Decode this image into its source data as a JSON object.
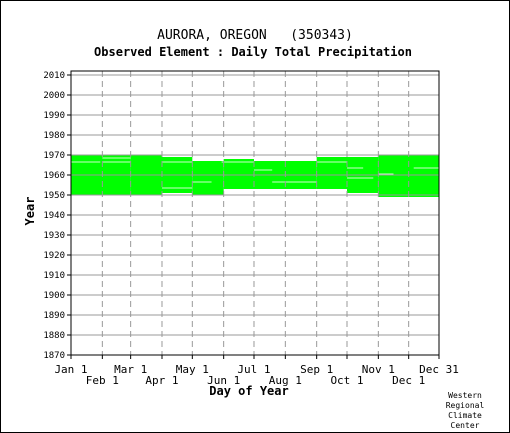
{
  "chart_data": {
    "type": "heatmap",
    "title": "AURORA, OREGON   (350343)",
    "subtitle": "Observed Element : Daily Total Precipitation",
    "xlabel": "Day of Year",
    "ylabel": "Year",
    "xlim": [
      1,
      365
    ],
    "ylim": [
      1870,
      2012
    ],
    "grid": true,
    "color": "#00ff00",
    "x_ticks_top_row": [
      {
        "label": "Jan 1",
        "day": 1
      },
      {
        "label": "Mar 1",
        "day": 60
      },
      {
        "label": "May 1",
        "day": 121
      },
      {
        "label": "Jul 1",
        "day": 182
      },
      {
        "label": "Sep 1",
        "day": 244
      },
      {
        "label": "Nov 1",
        "day": 305
      },
      {
        "label": "Dec 31",
        "day": 365
      }
    ],
    "x_ticks_bottom_row": [
      {
        "label": "Feb 1",
        "day": 32
      },
      {
        "label": "Apr 1",
        "day": 91
      },
      {
        "label": "Jun 1",
        "day": 152
      },
      {
        "label": "Aug 1",
        "day": 213
      },
      {
        "label": "Oct 1",
        "day": 274
      },
      {
        "label": "Dec 1",
        "day": 335
      }
    ],
    "y_ticks": [
      1870,
      1880,
      1890,
      1900,
      1910,
      1920,
      1930,
      1940,
      1950,
      1960,
      1970,
      1980,
      1990,
      2000,
      2010
    ],
    "coverage": [
      {
        "day_start": 1,
        "day_end": 60,
        "year_start": 1950,
        "year_end": 1969
      },
      {
        "day_start": 60,
        "day_end": 91,
        "year_start": 1950,
        "year_end": 1969
      },
      {
        "day_start": 91,
        "day_end": 121,
        "year_start": 1951,
        "year_end": 1968
      },
      {
        "day_start": 121,
        "day_end": 152,
        "year_start": 1950,
        "year_end": 1966
      },
      {
        "day_start": 152,
        "day_end": 182,
        "year_start": 1953,
        "year_end": 1967
      },
      {
        "day_start": 182,
        "day_end": 244,
        "year_start": 1953,
        "year_end": 1966
      },
      {
        "day_start": 244,
        "day_end": 274,
        "year_start": 1953,
        "year_end": 1968
      },
      {
        "day_start": 274,
        "day_end": 305,
        "year_start": 1951,
        "year_end": 1968
      },
      {
        "day_start": 305,
        "day_end": 365,
        "year_start": 1949,
        "year_end": 1969
      }
    ],
    "gaps": [
      {
        "day_start": 1,
        "day_end": 30,
        "year": 1966
      },
      {
        "day_start": 32,
        "day_end": 60,
        "year": 1968
      },
      {
        "day_start": 32,
        "day_end": 60,
        "year": 1966
      },
      {
        "day_start": 91,
        "day_end": 121,
        "year": 1966
      },
      {
        "day_start": 91,
        "day_end": 121,
        "year": 1953
      },
      {
        "day_start": 121,
        "day_end": 140,
        "year": 1956
      },
      {
        "day_start": 150,
        "day_end": 182,
        "year": 1966
      },
      {
        "day_start": 182,
        "day_end": 200,
        "year": 1962
      },
      {
        "day_start": 200,
        "day_end": 244,
        "year": 1956
      },
      {
        "day_start": 244,
        "day_end": 274,
        "year": 1966
      },
      {
        "day_start": 274,
        "day_end": 300,
        "year": 1958
      },
      {
        "day_start": 274,
        "day_end": 290,
        "year": 1963
      },
      {
        "day_start": 305,
        "day_end": 320,
        "year": 1960
      },
      {
        "day_start": 340,
        "day_end": 365,
        "year": 1963
      }
    ]
  },
  "credit": {
    "lines": [
      "Western",
      "Regional",
      "Climate",
      "Center"
    ]
  }
}
